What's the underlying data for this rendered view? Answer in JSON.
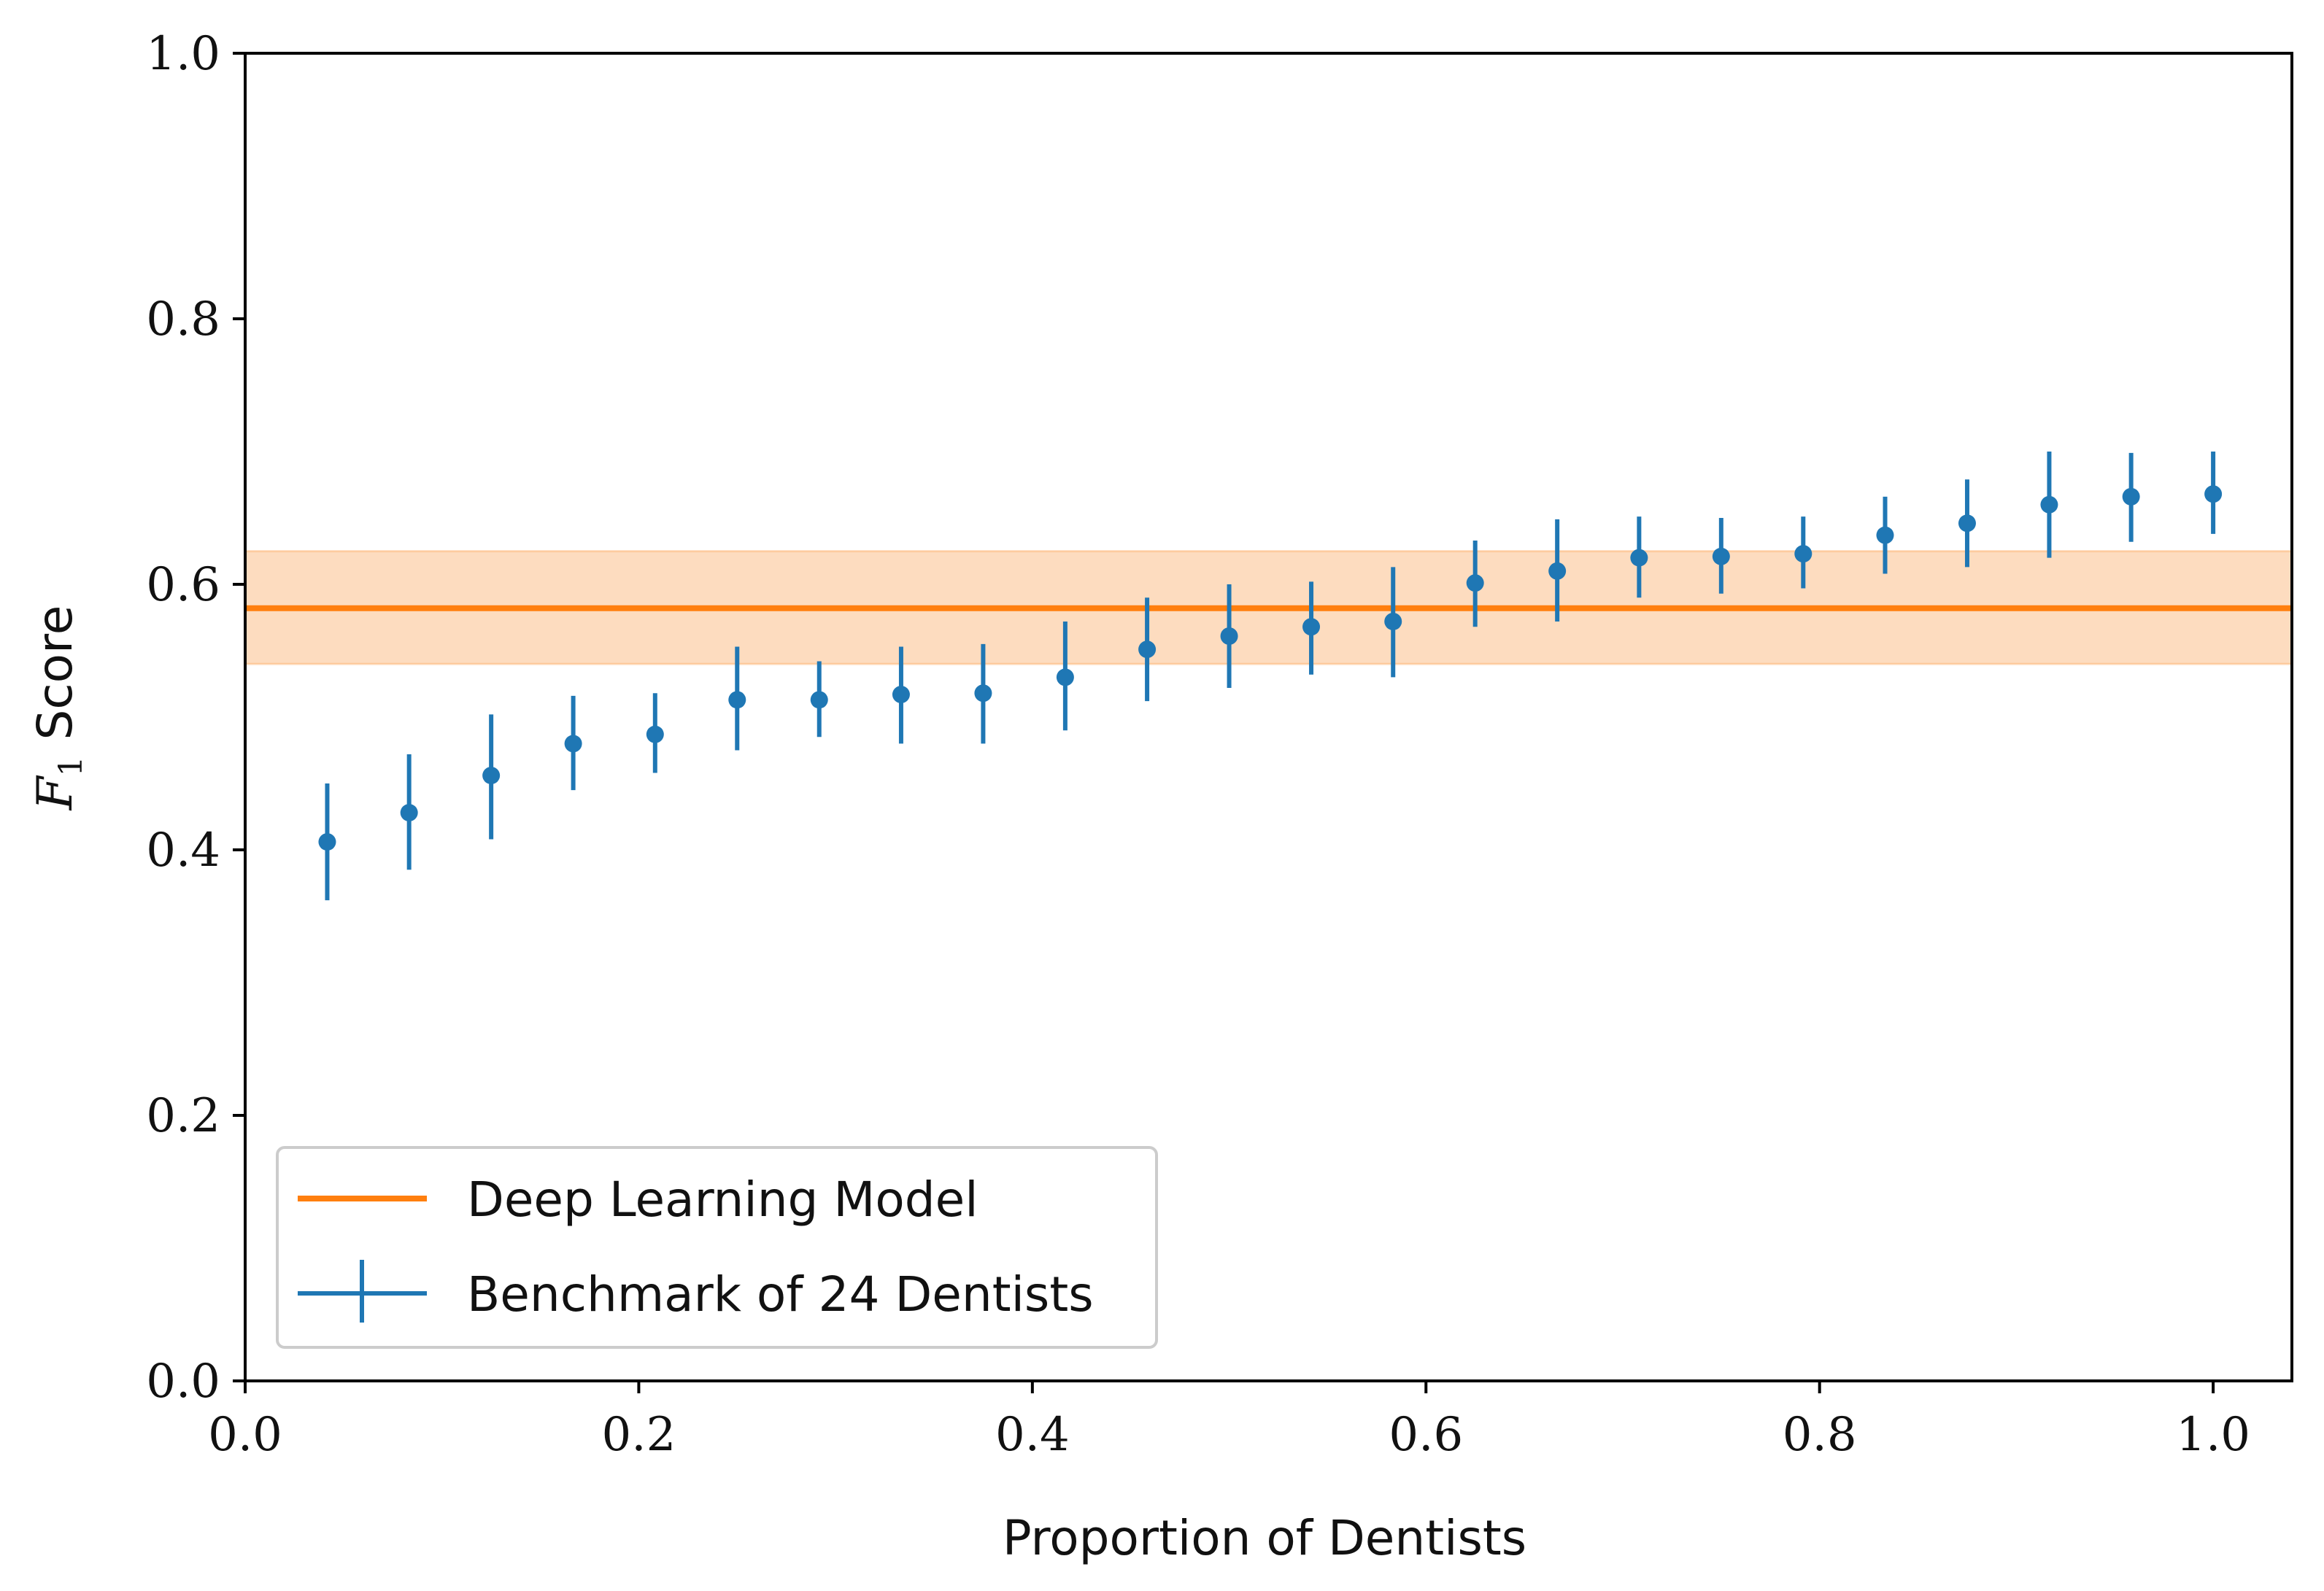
{
  "chart_data": {
    "type": "scatter",
    "title": "",
    "xlabel": "Proportion of Dentists",
    "ylabel": {
      "symbol": "F",
      "subscript": "1",
      "text": "Score"
    },
    "xlim": [
      0.0,
      1.04
    ],
    "ylim": [
      0.0,
      1.0
    ],
    "x_ticks": [
      0.0,
      0.2,
      0.4,
      0.6,
      0.8,
      1.0
    ],
    "x_tick_labels": [
      "0.0",
      "0.2",
      "0.4",
      "0.6",
      "0.8",
      "1.0"
    ],
    "y_ticks": [
      0.0,
      0.2,
      0.4,
      0.6,
      0.8,
      1.0
    ],
    "y_tick_labels": [
      "0.0",
      "0.2",
      "0.4",
      "0.6",
      "0.8",
      "1.0"
    ],
    "grid": false,
    "legend": {
      "position": "bottom-left",
      "entries": [
        "Deep Learning Model",
        "Benchmark of 24 Dentists"
      ]
    },
    "series": [
      {
        "name": "Deep Learning Model",
        "kind": "hline",
        "color": "#ff7f0e",
        "band_color": "#fdd8b8",
        "value": 0.582,
        "band": [
          0.54,
          0.625
        ]
      },
      {
        "name": "Benchmark of 24 Dentists",
        "kind": "errorbar",
        "color": "#1f77b4",
        "x": [
          0.0417,
          0.0833,
          0.125,
          0.1667,
          0.2083,
          0.25,
          0.2917,
          0.3333,
          0.375,
          0.4167,
          0.4583,
          0.5,
          0.5417,
          0.5833,
          0.625,
          0.6667,
          0.7083,
          0.75,
          0.7917,
          0.8333,
          0.875,
          0.9167,
          0.9583,
          1.0
        ],
        "y": [
          0.406,
          0.428,
          0.456,
          0.48,
          0.487,
          0.513,
          0.513,
          0.517,
          0.518,
          0.53,
          0.551,
          0.561,
          0.568,
          0.572,
          0.601,
          0.61,
          0.62,
          0.621,
          0.623,
          0.637,
          0.646,
          0.66,
          0.666,
          0.668
        ],
        "yerr_low": [
          0.362,
          0.385,
          0.408,
          0.445,
          0.458,
          0.475,
          0.485,
          0.48,
          0.48,
          0.49,
          0.512,
          0.522,
          0.532,
          0.53,
          0.568,
          0.572,
          0.59,
          0.593,
          0.597,
          0.608,
          0.613,
          0.62,
          0.632,
          0.638
        ],
        "yerr_high": [
          0.45,
          0.472,
          0.502,
          0.516,
          0.518,
          0.553,
          0.542,
          0.553,
          0.555,
          0.572,
          0.59,
          0.6,
          0.602,
          0.613,
          0.633,
          0.649,
          0.651,
          0.65,
          0.651,
          0.666,
          0.679,
          0.7,
          0.699,
          0.7
        ]
      }
    ]
  }
}
